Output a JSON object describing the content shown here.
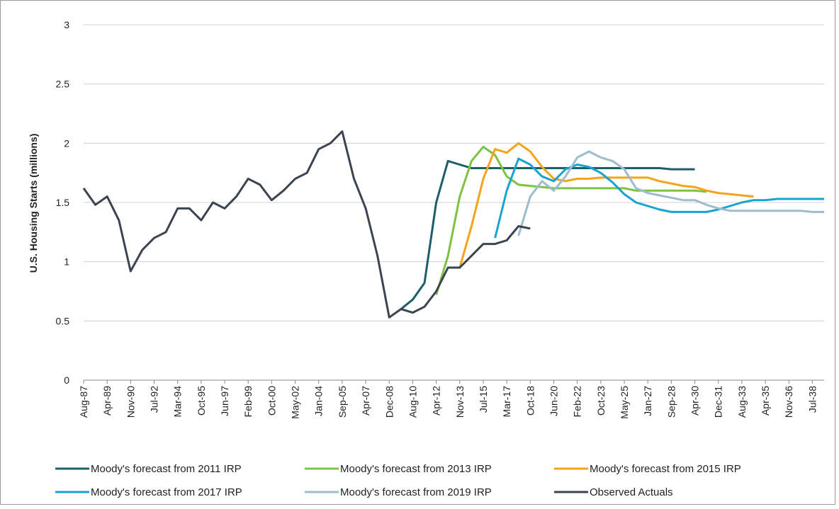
{
  "chart_data": {
    "type": "line",
    "y_label": "U.S. Housing Starts (millions)",
    "categories": [
      "Aug-87",
      null,
      "Apr-89",
      null,
      "Nov-90",
      null,
      "Jul-92",
      null,
      "Mar-94",
      null,
      "Oct-95",
      null,
      "Jun-97",
      null,
      "Feb-99",
      null,
      "Oct-00",
      null,
      "May-02",
      null,
      "Jan-04",
      null,
      "Sep-05",
      null,
      "Apr-07",
      null,
      "Dec-08",
      null,
      "Aug-10",
      null,
      "Apr-12",
      null,
      "Nov-13",
      null,
      "Jul-15",
      null,
      "Mar-17",
      null,
      "Oct-18",
      null,
      "Jun-20",
      null,
      "Feb-22",
      null,
      "Oct-23",
      null,
      "May-25",
      null,
      "Jan-27",
      null,
      "Sep-28",
      null,
      "Apr-30",
      null,
      "Dec-31",
      null,
      "Aug-33",
      null,
      "Apr-35",
      null,
      "Nov-36",
      null,
      "Jul-38",
      null
    ],
    "ylim": [
      0,
      3
    ],
    "yticks": [
      0,
      0.5,
      1,
      1.5,
      2,
      2.5,
      3
    ],
    "grid": true,
    "series": [
      {
        "name": "Moody's forecast from 2011 IRP",
        "color": "#1d5e6b",
        "values": [
          null,
          null,
          null,
          null,
          null,
          null,
          null,
          null,
          null,
          null,
          null,
          null,
          null,
          null,
          null,
          null,
          null,
          null,
          null,
          null,
          null,
          null,
          null,
          null,
          null,
          null,
          null,
          0.6,
          0.68,
          0.82,
          1.5,
          1.85,
          1.82,
          1.79,
          1.79,
          1.79,
          1.79,
          1.79,
          1.79,
          1.79,
          1.79,
          1.79,
          1.79,
          1.79,
          1.79,
          1.79,
          1.79,
          1.79,
          1.79,
          1.79,
          1.78,
          1.78,
          1.78,
          null,
          null,
          null,
          null,
          null,
          null,
          null,
          null,
          null,
          null,
          null
        ]
      },
      {
        "name": "Moody's forecast from 2013 IRP",
        "color": "#7dc242",
        "values": [
          null,
          null,
          null,
          null,
          null,
          null,
          null,
          null,
          null,
          null,
          null,
          null,
          null,
          null,
          null,
          null,
          null,
          null,
          null,
          null,
          null,
          null,
          null,
          null,
          null,
          null,
          null,
          null,
          null,
          null,
          0.72,
          1.05,
          1.55,
          1.85,
          1.97,
          1.9,
          1.72,
          1.65,
          1.64,
          1.63,
          1.62,
          1.62,
          1.62,
          1.62,
          1.62,
          1.62,
          1.62,
          1.6,
          1.6,
          1.6,
          1.6,
          1.6,
          1.6,
          1.59,
          null,
          null,
          null,
          null,
          null,
          null,
          null,
          null,
          null,
          null
        ]
      },
      {
        "name": "Moody's forecast from 2015 IRP",
        "color": "#f5a31a",
        "values": [
          null,
          null,
          null,
          null,
          null,
          null,
          null,
          null,
          null,
          null,
          null,
          null,
          null,
          null,
          null,
          null,
          null,
          null,
          null,
          null,
          null,
          null,
          null,
          null,
          null,
          null,
          null,
          null,
          null,
          null,
          null,
          null,
          0.95,
          1.3,
          1.7,
          1.95,
          1.92,
          2.0,
          1.93,
          1.8,
          1.7,
          1.68,
          1.7,
          1.7,
          1.71,
          1.71,
          1.71,
          1.71,
          1.71,
          1.68,
          1.66,
          1.64,
          1.63,
          1.6,
          1.58,
          1.57,
          1.56,
          1.55,
          null,
          null,
          null,
          null,
          null,
          null
        ]
      },
      {
        "name": "Moody's forecast from 2017 IRP",
        "color": "#1aa3d1",
        "values": [
          null,
          null,
          null,
          null,
          null,
          null,
          null,
          null,
          null,
          null,
          null,
          null,
          null,
          null,
          null,
          null,
          null,
          null,
          null,
          null,
          null,
          null,
          null,
          null,
          null,
          null,
          null,
          null,
          null,
          null,
          null,
          null,
          null,
          null,
          null,
          1.2,
          1.6,
          1.87,
          1.82,
          1.72,
          1.68,
          1.78,
          1.82,
          1.8,
          1.75,
          1.67,
          1.57,
          1.5,
          1.47,
          1.44,
          1.42,
          1.42,
          1.42,
          1.42,
          1.44,
          1.47,
          1.5,
          1.52,
          1.52,
          1.53,
          1.53,
          1.53,
          1.53,
          1.53
        ]
      },
      {
        "name": "Moody's forecast from 2019 IRP",
        "color": "#9dbdcc",
        "values": [
          null,
          null,
          null,
          null,
          null,
          null,
          null,
          null,
          null,
          null,
          null,
          null,
          null,
          null,
          null,
          null,
          null,
          null,
          null,
          null,
          null,
          null,
          null,
          null,
          null,
          null,
          null,
          null,
          null,
          null,
          null,
          null,
          null,
          null,
          null,
          null,
          null,
          1.22,
          1.55,
          1.68,
          1.6,
          1.72,
          1.88,
          1.93,
          1.88,
          1.85,
          1.78,
          1.62,
          1.58,
          1.56,
          1.54,
          1.52,
          1.52,
          1.48,
          1.45,
          1.43,
          1.43,
          1.43,
          1.43,
          1.43,
          1.43,
          1.43,
          1.42,
          1.42
        ]
      },
      {
        "name": "Observed Actuals",
        "color": "#3d4451",
        "values": [
          1.62,
          1.48,
          1.55,
          1.35,
          0.92,
          1.1,
          1.2,
          1.25,
          1.45,
          1.45,
          1.35,
          1.5,
          1.45,
          1.55,
          1.7,
          1.65,
          1.52,
          1.6,
          1.7,
          1.75,
          1.95,
          2.0,
          2.1,
          1.7,
          1.45,
          1.05,
          0.53,
          0.6,
          0.57,
          0.62,
          0.75,
          0.95,
          0.95,
          1.05,
          1.15,
          1.15,
          1.18,
          1.3,
          1.28,
          null,
          null,
          null,
          null,
          null,
          null,
          null,
          null,
          null,
          null,
          null,
          null,
          null,
          null,
          null,
          null,
          null,
          null,
          null,
          null,
          null,
          null,
          null,
          null,
          null
        ]
      }
    ]
  }
}
